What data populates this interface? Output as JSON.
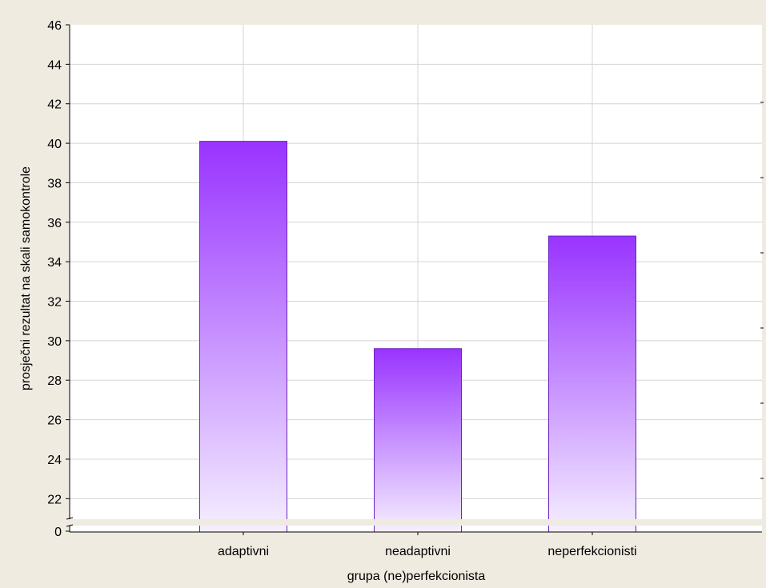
{
  "colors": {
    "frame": "#efebe1",
    "plot_bg": "#ffffff",
    "grid": "#d4d4d4",
    "bar_top": "#9933ff",
    "bar_bottom": "#f5efff",
    "bar_stroke": "#6a22c4",
    "axis": "#000000"
  },
  "chart_data": {
    "type": "bar",
    "categories": [
      "adaptivni",
      "neadaptivni",
      "neperfekcionisti"
    ],
    "values": [
      40.1,
      29.6,
      35.3
    ],
    "xlabel": "grupa (ne)perfekcionista",
    "ylabel": "prosječni rezultat na skali samokontrole",
    "ylim": [
      21,
      46
    ],
    "y_break": true,
    "y_ticks": [
      "46",
      "44",
      "42",
      "40",
      "38",
      "36",
      "34",
      "32",
      "30",
      "28",
      "26",
      "24",
      "22",
      "0"
    ],
    "grid": true
  }
}
